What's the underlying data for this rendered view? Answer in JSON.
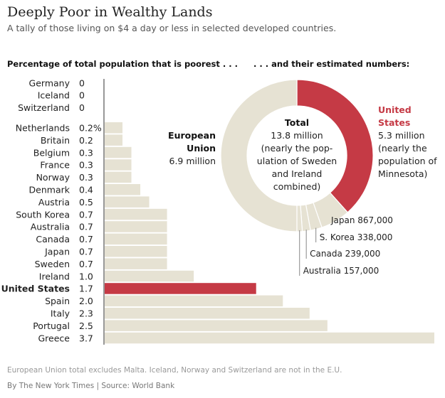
{
  "title": "Deeply Poor in Wealthy Lands",
  "subtitle": "A tally of those living on $4 a day or less in selected developed countries.",
  "note": "European Union total excludes Malta. Iceland, Norway and Switzerland are not in the E.U.",
  "credit": "By The New York Times | Source: World Bank",
  "colors": {
    "bar": "#e6e2d3",
    "highlight": "#c53a45",
    "axis": "#333"
  },
  "chart_data": [
    {
      "type": "bar",
      "orientation": "horizontal",
      "title": "Percentage of total population that is poorest . . .",
      "unit": "%",
      "categories": [
        "Germany",
        "Iceland",
        "Switzerland",
        "Netherlands",
        "Britain",
        "Belgium",
        "France",
        "Norway",
        "Denmark",
        "Austria",
        "South Korea",
        "Australia",
        "Canada",
        "Japan",
        "Sweden",
        "Ireland",
        "United States",
        "Spain",
        "Italy",
        "Portugal",
        "Greece"
      ],
      "value_labels": [
        "0",
        "0",
        "0",
        "0.2%",
        "0.2",
        "0.3",
        "0.3",
        "0.3",
        "0.4",
        "0.5",
        "0.7",
        "0.7",
        "0.7",
        "0.7",
        "0.7",
        "1.0",
        "1.7",
        "2.0",
        "2.3",
        "2.5",
        "3.7"
      ],
      "values": [
        0,
        0,
        0,
        0.2,
        0.2,
        0.3,
        0.3,
        0.3,
        0.4,
        0.5,
        0.7,
        0.7,
        0.7,
        0.7,
        0.7,
        1.0,
        1.7,
        2.0,
        2.3,
        2.5,
        3.7
      ],
      "highlight": "United States",
      "xlim": [
        0,
        3.7
      ]
    },
    {
      "type": "pie",
      "donut": true,
      "title": ". . . and their estimated numbers:",
      "unit": "million",
      "slices": [
        {
          "name": "United States",
          "value": 5.3,
          "label": "5.3 million",
          "note": "(nearly the population of Minnesota)",
          "highlight": true
        },
        {
          "name": "Japan",
          "value": 0.867,
          "label": "867,000"
        },
        {
          "name": "S. Korea",
          "value": 0.338,
          "label": "338,000"
        },
        {
          "name": "Canada",
          "value": 0.239,
          "label": "239,000"
        },
        {
          "name": "Australia",
          "value": 0.157,
          "label": "157,000"
        },
        {
          "name": "European Union",
          "value": 6.9,
          "label": "6.9 million"
        }
      ],
      "center": {
        "heading": "Total",
        "lines": [
          "13.8 million",
          "(nearly the pop-",
          "ulation of Sweden",
          "and Ireland",
          "combined)"
        ]
      },
      "us_label": [
        "United",
        "States"
      ],
      "us_note": [
        "5.3 million",
        "(nearly the",
        "population of",
        "Minnesota)"
      ],
      "eu_label": [
        "European",
        "Union"
      ],
      "eu_value": "6.9 million"
    }
  ]
}
